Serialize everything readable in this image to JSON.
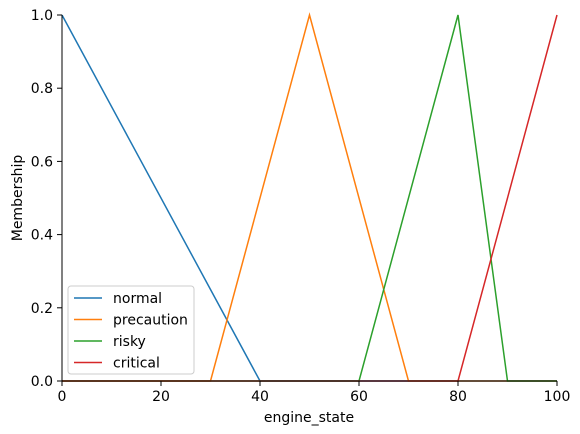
{
  "chart_data": {
    "type": "line",
    "title": "",
    "xlabel": "engine_state",
    "ylabel": "Membership",
    "xlim": [
      0,
      100
    ],
    "ylim": [
      0,
      1.0
    ],
    "xticks": [
      0,
      20,
      40,
      60,
      80,
      100
    ],
    "xtick_labels": [
      "0",
      "20",
      "40",
      "60",
      "80",
      "100"
    ],
    "yticks": [
      0,
      0.2,
      0.4,
      0.6,
      0.8,
      1.0
    ],
    "ytick_labels": [
      "0.0",
      "0.2",
      "0.4",
      "0.6",
      "0.8",
      "1.0"
    ],
    "grid": false,
    "legend_position": "lower-left",
    "series": [
      {
        "name": "normal",
        "color": "#1f77b4",
        "x": [
          0,
          40,
          100
        ],
        "y": [
          1.0,
          0.0,
          0.0
        ]
      },
      {
        "name": "precaution",
        "color": "#ff7f0e",
        "x": [
          0,
          30,
          50,
          70,
          100
        ],
        "y": [
          0.0,
          0.0,
          1.0,
          0.0,
          0.0
        ]
      },
      {
        "name": "risky",
        "color": "#2ca02c",
        "x": [
          0,
          60,
          80,
          90,
          100
        ],
        "y": [
          0.0,
          0.0,
          1.0,
          0.0,
          0.0
        ]
      },
      {
        "name": "critical",
        "color": "#d62728",
        "x": [
          0,
          80,
          100
        ],
        "y": [
          0.0,
          0.0,
          1.0
        ]
      }
    ]
  }
}
